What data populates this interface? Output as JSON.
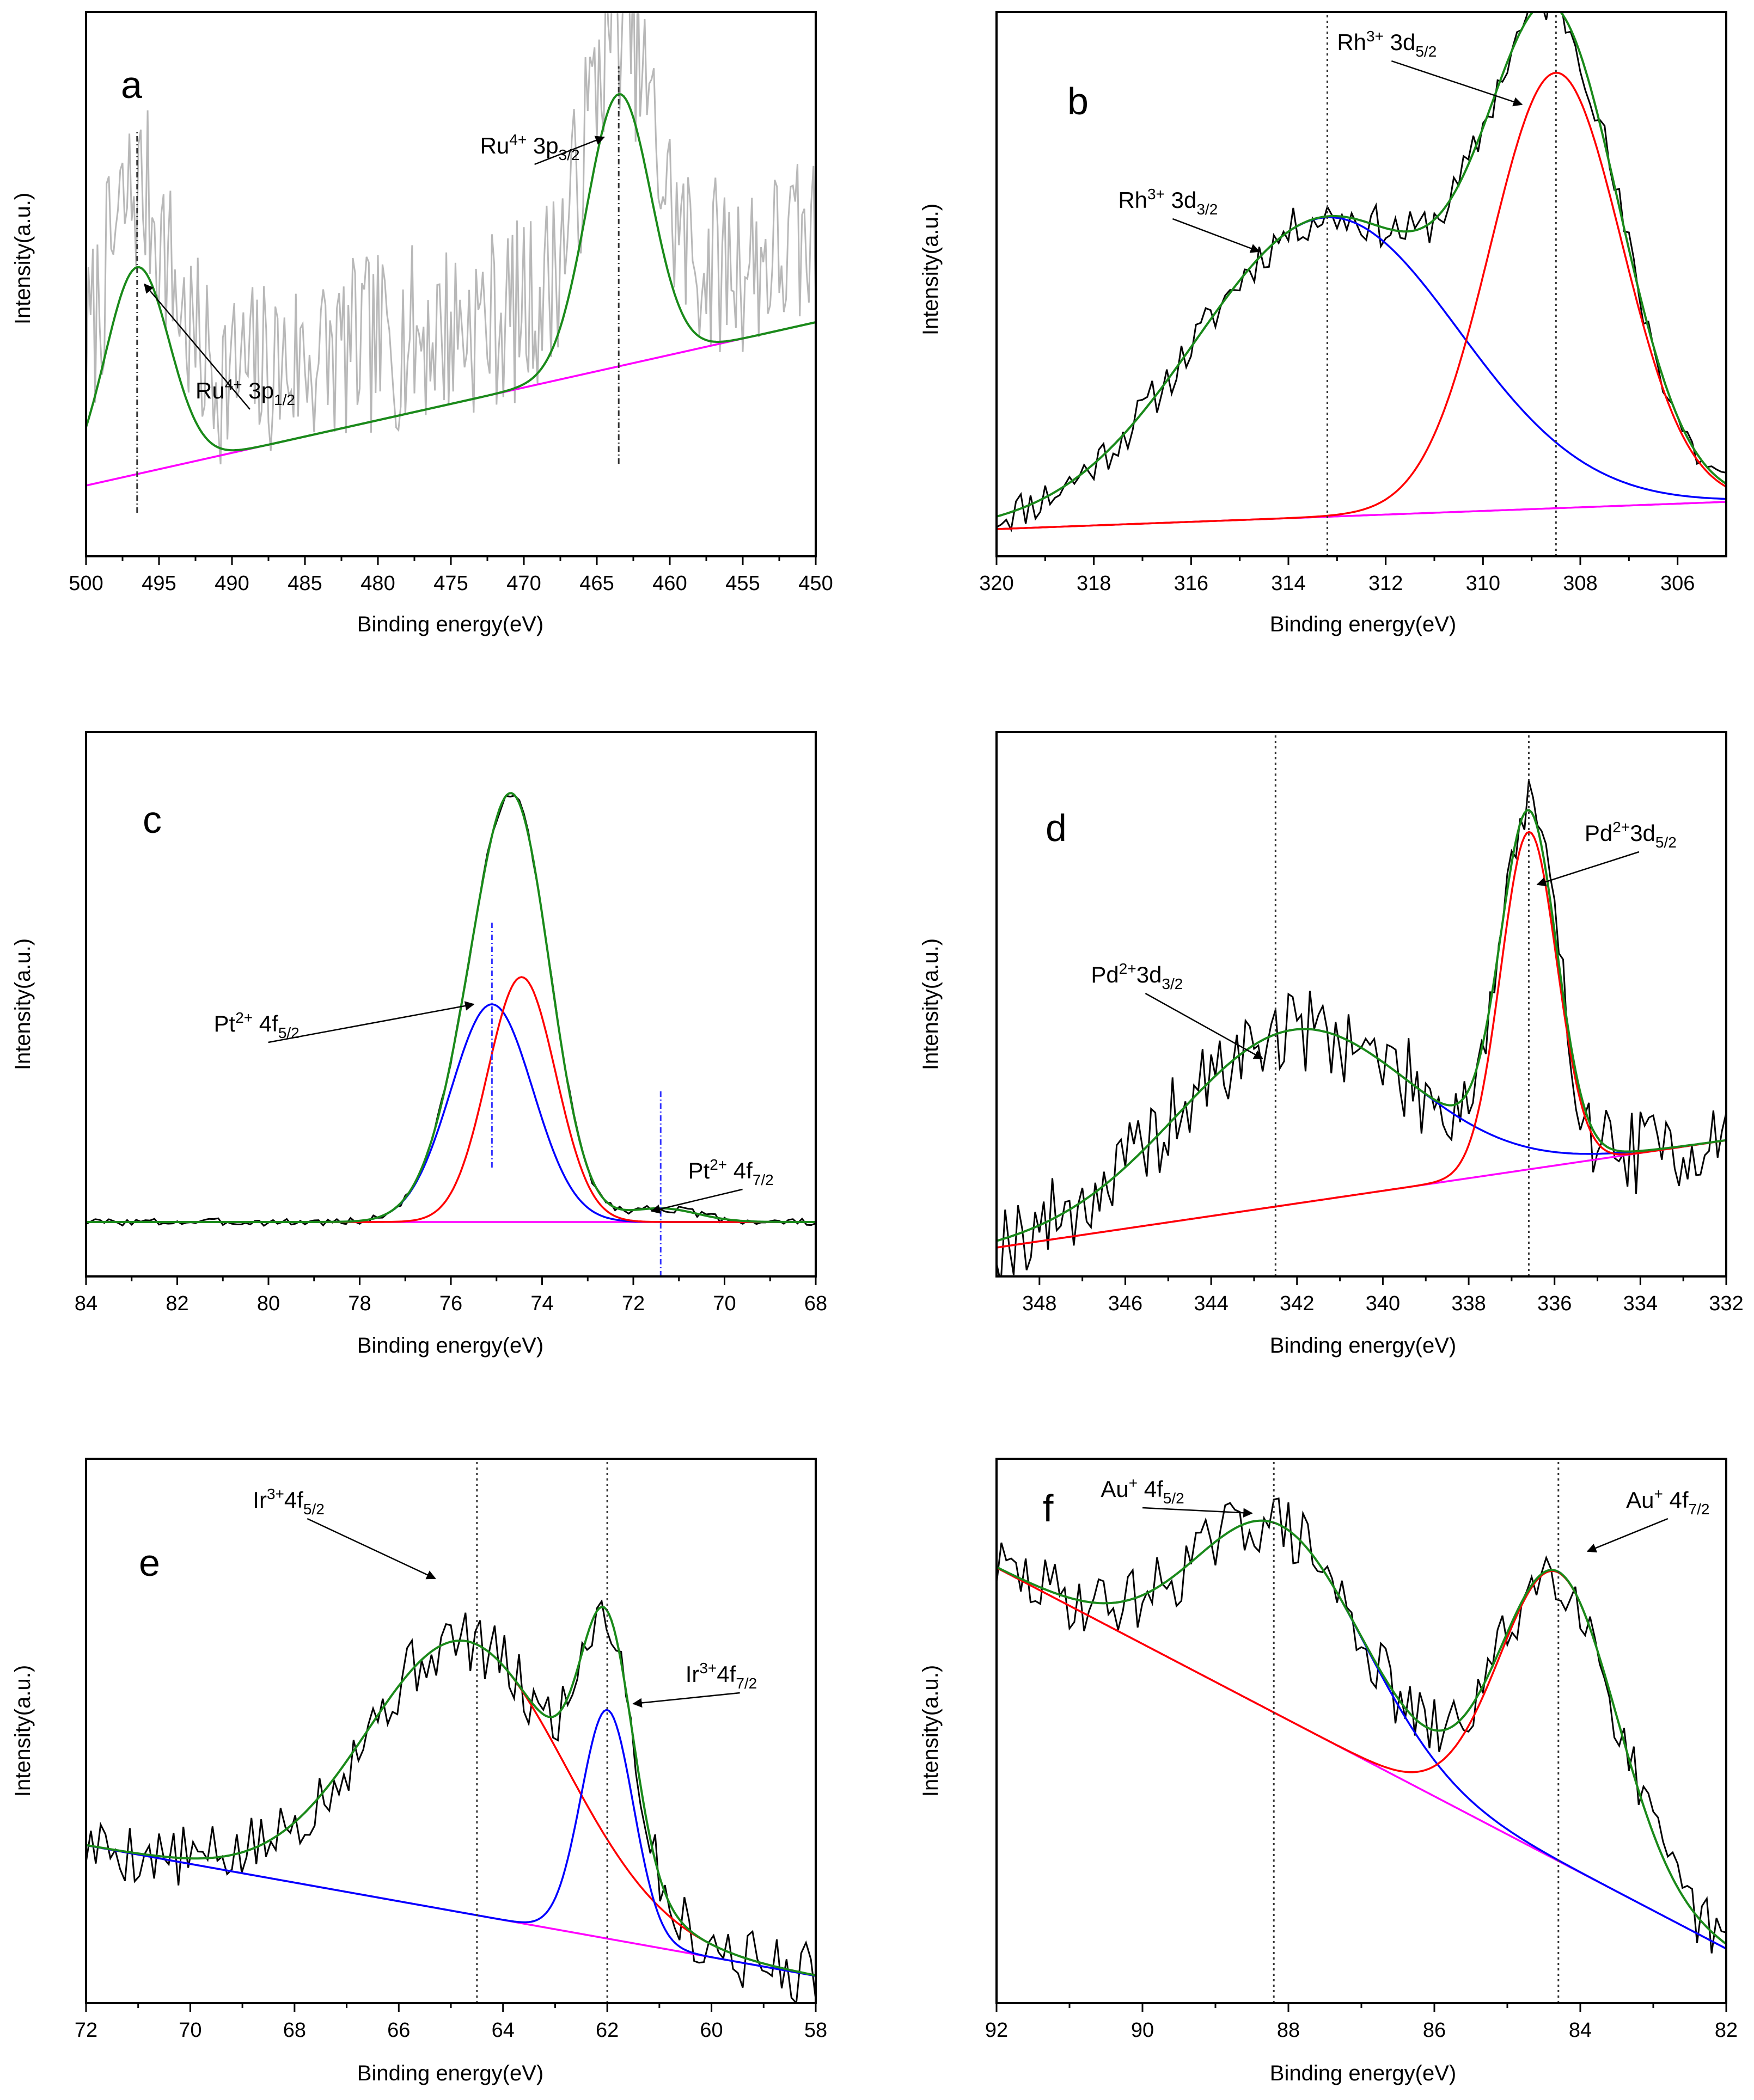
{
  "figure": {
    "colors": {
      "data": "#000000",
      "noise": "#b8b8b8",
      "envelope": "#1a8a1a",
      "peak_a": "#ff0000",
      "peak_b": "#0000ff",
      "background": "#ff00ff",
      "marker_blue": "#3333ff"
    }
  },
  "chart_data": [
    {
      "type": "line",
      "panel": "a",
      "xlabel": "Binding energy(eV)",
      "ylabel": "Intensity(a.u.)",
      "xlim": [
        500,
        450
      ],
      "ylim": [
        0,
        100
      ],
      "xticks": [
        500,
        495,
        490,
        485,
        480,
        475,
        470,
        465,
        460,
        455,
        450
      ],
      "xtick_labels": [
        "500",
        "495",
        "490",
        "485",
        "480",
        "475",
        "470",
        "465",
        "460",
        "455",
        "450"
      ],
      "background": {
        "x": [
          500,
          450
        ],
        "y": [
          13,
          43
        ]
      },
      "peaks": [
        {
          "name": "Ru4+ 3p1/2",
          "center": 496.5,
          "height": 38,
          "width": 2.2
        },
        {
          "name": "Ru4+ 3p3/2",
          "center": 463.5,
          "height": 50,
          "width": 2.2
        }
      ],
      "noise": {
        "amplitude": 17,
        "points": 320,
        "seed": 7,
        "offset": 14
      },
      "markers": [
        {
          "x": 496.5,
          "y0": 8,
          "y1": 78
        },
        {
          "x": 463.5,
          "y0": 17,
          "y1": 90
        }
      ],
      "annotations": [
        {
          "base": "Ru",
          "sup": "4+",
          "text": " 3p",
          "sub": "1/2",
          "label": "Ru4+ 3p1/2",
          "ax": 496,
          "ay": 50,
          "tx": 492.5,
          "ty": 29,
          "anchor": "start"
        },
        {
          "base": "Ru",
          "sup": "4+",
          "text": " 3p",
          "sub": "3/2",
          "label": "Ru4+ 3p3/2",
          "ax": 464.5,
          "ay": 77,
          "tx": 473,
          "ty": 74,
          "anchor": "start"
        }
      ]
    },
    {
      "type": "line",
      "panel": "b",
      "xlabel": "Binding energy(eV)",
      "ylabel": "Intensity(a.u.)",
      "xlim": [
        320,
        305
      ],
      "ylim": [
        0,
        100
      ],
      "xticks": [
        320,
        318,
        316,
        314,
        312,
        310,
        308,
        306
      ],
      "xtick_labels": [
        "320",
        "318",
        "316",
        "314",
        "312",
        "310",
        "308",
        "306"
      ],
      "background": {
        "x": [
          320,
          305
        ],
        "y": [
          5,
          10
        ]
      },
      "peaks": [
        {
          "name": "Rh3+ 3d3/2",
          "center": 313.2,
          "height": 55,
          "width": 2.7
        },
        {
          "name": "Rh3+ 3d5/2",
          "center": 308.5,
          "height": 80,
          "width": 1.35
        }
      ],
      "noise": {
        "amplitude": 3.8,
        "points": 150,
        "seed": 11,
        "offset": 0
      },
      "markers": [
        {
          "x": 313.2,
          "y0": 0,
          "y1": 100
        },
        {
          "x": 308.5,
          "y0": 0,
          "y1": 100
        }
      ],
      "annotations": [
        {
          "base": "Rh",
          "sup": "3+",
          "text": " 3d",
          "sub": "3/2",
          "label": "Rh3+ 3d3/2",
          "ax": 314.6,
          "ay": 56,
          "tx": 317.5,
          "ty": 64,
          "anchor": "start"
        },
        {
          "base": "Rh",
          "sup": "3+",
          "text": " 3d",
          "sub": "5/2",
          "label": "Rh3+ 3d5/2",
          "ax": 309.2,
          "ay": 83,
          "tx": 313,
          "ty": 93,
          "anchor": "start"
        }
      ]
    },
    {
      "type": "line",
      "panel": "c",
      "xlabel": "Binding energy(eV)",
      "ylabel": "Intensity(a.u.)",
      "xlim": [
        84,
        68
      ],
      "ylim": [
        0,
        100
      ],
      "xticks": [
        84,
        82,
        80,
        78,
        76,
        74,
        72,
        70,
        68
      ],
      "xtick_labels": [
        "84",
        "82",
        "80",
        "78",
        "76",
        "74",
        "72",
        "70",
        "68"
      ],
      "background": {
        "x": [
          84,
          68
        ],
        "y": [
          10,
          10
        ]
      },
      "peaks": [
        {
          "name": "Pt2+ 4f5/2",
          "center": 75.1,
          "height": 40,
          "width": 0.9
        },
        {
          "name": "Pt2+ 4f7/2 main",
          "center": 74.45,
          "height": 45,
          "width": 0.75
        },
        {
          "name": "Pt2+ 4f7/2",
          "center": 71.4,
          "height": 2.5,
          "width": 0.8
        }
      ],
      "noise": {
        "amplitude": 0.7,
        "points": 160,
        "seed": 3,
        "offset": 0
      },
      "markers": [
        {
          "x": 75.1,
          "y0": 20,
          "y1": 65
        },
        {
          "x": 71.4,
          "y0": 0,
          "y1": 34
        }
      ],
      "annotations": [
        {
          "base": "Pt",
          "sup": "2+",
          "text": " 4f",
          "sub": "5/2",
          "label": "Pt2+ 4f5/2",
          "ax": 75.5,
          "ay": 50,
          "tx": 81.2,
          "ty": 45,
          "anchor": "start"
        },
        {
          "base": "Pt",
          "sup": "2+",
          "text": " 4f",
          "sub": "7/2",
          "label": "Pt2+ 4f7/2",
          "ax": 71.6,
          "ay": 12,
          "tx": 70.8,
          "ty": 18,
          "anchor": "start"
        }
      ]
    },
    {
      "type": "line",
      "panel": "d",
      "xlabel": "Binding energy(eV)",
      "ylabel": "Intensity(a.u.)",
      "xlim": [
        349,
        332
      ],
      "ylim": [
        0,
        100
      ],
      "xticks": [
        348,
        346,
        344,
        342,
        340,
        338,
        336,
        334,
        332
      ],
      "xtick_labels": [
        "348",
        "346",
        "344",
        "342",
        "340",
        "338",
        "336",
        "334",
        "332"
      ],
      "background": {
        "x": [
          348.4,
          332
        ],
        "y": [
          6,
          25
        ]
      },
      "peaks": [
        {
          "name": "Pd2+ 3d3/2",
          "center": 342.1,
          "height": 32,
          "width": 2.7
        },
        {
          "name": "Pd2+ 3d5/2",
          "center": 336.6,
          "height": 62,
          "width": 0.65
        }
      ],
      "noise": {
        "amplitude": 8,
        "points": 170,
        "seed": 19,
        "offset": 0
      },
      "markers": [
        {
          "x": 342.5,
          "y0": 0,
          "y1": 100
        },
        {
          "x": 336.6,
          "y0": 0,
          "y1": 100
        }
      ],
      "annotations": [
        {
          "base": "Pd",
          "sup": "2+",
          "text": "3d",
          "sub": "3/2",
          "label": "Pd2+3d3/2",
          "ax": 342.8,
          "ay": 40,
          "tx": 346.8,
          "ty": 54,
          "anchor": "start"
        },
        {
          "base": "Pd",
          "sup": "2+",
          "text": "3d",
          "sub": "5/2",
          "label": "Pd2+3d5/2",
          "ax": 336.4,
          "ay": 72,
          "tx": 335.3,
          "ty": 80,
          "anchor": "start"
        }
      ]
    },
    {
      "type": "line",
      "panel": "e",
      "xlabel": "Binding energy(eV)",
      "ylabel": "Intensity(a.u.)",
      "xlim": [
        72,
        58
      ],
      "ylim": [
        0,
        100
      ],
      "xticks": [
        72,
        70,
        68,
        66,
        64,
        62,
        60,
        58
      ],
      "xtick_labels": [
        "72",
        "70",
        "68",
        "66",
        "64",
        "62",
        "60",
        "58"
      ],
      "background": {
        "x": [
          72,
          58
        ],
        "y": [
          29,
          5
        ]
      },
      "peaks": [
        {
          "name": "Ir3+ 4f5/2",
          "center": 64.7,
          "height": 50,
          "width": 1.9
        },
        {
          "name": "Ir3+ 4f7/2",
          "center": 62.0,
          "height": 42,
          "width": 0.5
        }
      ],
      "noise": {
        "amplitude": 6,
        "points": 150,
        "seed": 5,
        "offset": 0
      },
      "markers": [
        {
          "x": 64.5,
          "y0": 0,
          "y1": 100
        },
        {
          "x": 62.0,
          "y0": 0,
          "y1": 100
        }
      ],
      "annotations": [
        {
          "base": "Ir",
          "sup": "3+",
          "text": "4f",
          "sub": "5/2",
          "label": "Ir3+4f5/2",
          "ax": 65.3,
          "ay": 78,
          "tx": 68.8,
          "ty": 91,
          "anchor": "start"
        },
        {
          "base": "Ir",
          "sup": "3+",
          "text": "4f",
          "sub": "7/2",
          "label": "Ir3+4f7/2",
          "ax": 61.5,
          "ay": 55,
          "tx": 60.5,
          "ty": 59,
          "anchor": "start"
        }
      ]
    },
    {
      "type": "line",
      "panel": "f",
      "xlabel": "Binding energy(eV)",
      "ylabel": "Intensity(a.u.)",
      "xlim": [
        92,
        82
      ],
      "ylim": [
        0,
        100
      ],
      "xticks": [
        92,
        90,
        88,
        86,
        84,
        82
      ],
      "xtick_labels": [
        "92",
        "90",
        "88",
        "86",
        "84",
        "82"
      ],
      "background": {
        "x": [
          92,
          82
        ],
        "y": [
          80,
          10
        ]
      },
      "peaks": [
        {
          "name": "Au+ 4f5/2",
          "center": 88.1,
          "height": 35,
          "width": 1.15
        },
        {
          "name": "Au+ 4f7/2",
          "center": 84.3,
          "height": 53,
          "width": 0.8
        }
      ],
      "noise": {
        "amplitude": 6,
        "points": 150,
        "seed": 29,
        "offset": 0
      },
      "markers": [
        {
          "x": 88.2,
          "y0": 0,
          "y1": 100
        },
        {
          "x": 84.3,
          "y0": 0,
          "y1": 100
        }
      ],
      "annotations": [
        {
          "base": "Au",
          "sup": "+",
          "text": " 4f",
          "sub": "5/2",
          "label": "Au+ 4f5/2",
          "ax": 88.5,
          "ay": 90,
          "tx": 90,
          "ty": 93,
          "anchor": "middle"
        },
        {
          "base": "Au",
          "sup": "+",
          "text": " 4f",
          "sub": "7/2",
          "label": "Au+ 4f7/2",
          "ax": 83.9,
          "ay": 83,
          "tx": 82.8,
          "ty": 91,
          "anchor": "middle"
        }
      ]
    }
  ],
  "panel_letters": [
    "a",
    "b",
    "c",
    "d",
    "e",
    "f"
  ]
}
